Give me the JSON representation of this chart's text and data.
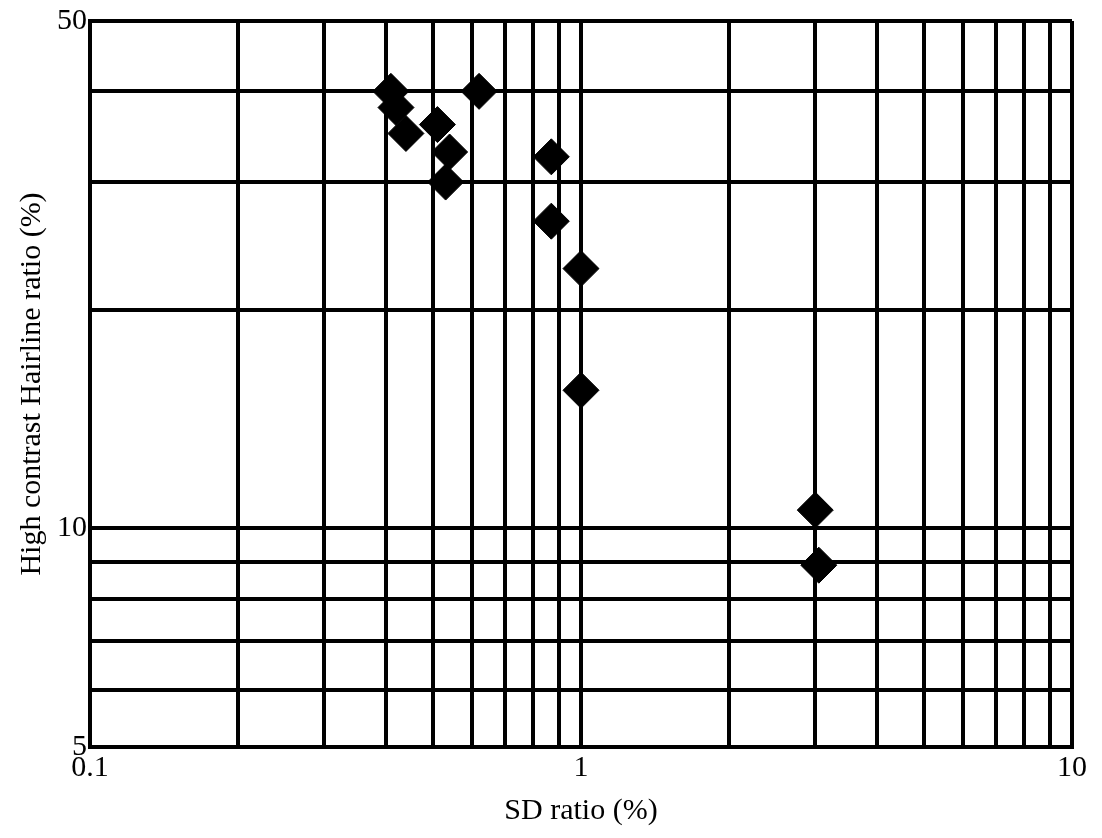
{
  "chart_data": {
    "type": "scatter",
    "xlabel": "SD ratio (%)",
    "ylabel": "High contrast Hairline ratio (%)",
    "x": [
      0.41,
      0.42,
      0.44,
      0.51,
      0.54,
      0.53,
      0.62,
      0.87,
      0.87,
      1.0,
      1.0,
      3.0,
      3.05
    ],
    "series": [
      {
        "color": "#000000",
        "values": [
          40,
          38,
          35,
          36,
          33,
          30,
          40,
          32.5,
          26.5,
          22.8,
          15.5,
          10.6,
          8.9
        ]
      }
    ],
    "log": "xy",
    "xlim": [
      0.1,
      10
    ],
    "ylim": [
      5,
      50
    ],
    "xticks": [
      0.1,
      {
        "value": 0.2,
        "label": null
      },
      {
        "value": 0.3,
        "label": null
      },
      {
        "value": 0.4,
        "label": null
      },
      {
        "value": 0.5,
        "label": null
      },
      {
        "value": 0.6,
        "label": null
      },
      {
        "value": 0.7,
        "label": null
      },
      {
        "value": 0.8,
        "label": null
      },
      {
        "value": 0.9,
        "label": null
      },
      1,
      {
        "value": 2,
        "label": null
      },
      {
        "value": 3,
        "label": null
      },
      {
        "value": 4,
        "label": null
      },
      {
        "value": 5,
        "label": null
      },
      {
        "value": 6,
        "label": null
      },
      {
        "value": 7,
        "label": null
      },
      {
        "value": 8,
        "label": null
      },
      {
        "value": 9,
        "label": null
      },
      10
    ],
    "yticks": [
      5,
      {
        "value": 6,
        "label": null
      },
      {
        "value": 7,
        "label": null
      },
      {
        "value": 8,
        "label": null
      },
      {
        "value": 9,
        "label": null
      },
      10,
      {
        "value": 20,
        "label": null
      },
      {
        "value": 30,
        "label": null
      },
      {
        "value": 40,
        "label": null
      },
      50
    ],
    "grid": true,
    "legend": false,
    "marker": "diamond"
  }
}
